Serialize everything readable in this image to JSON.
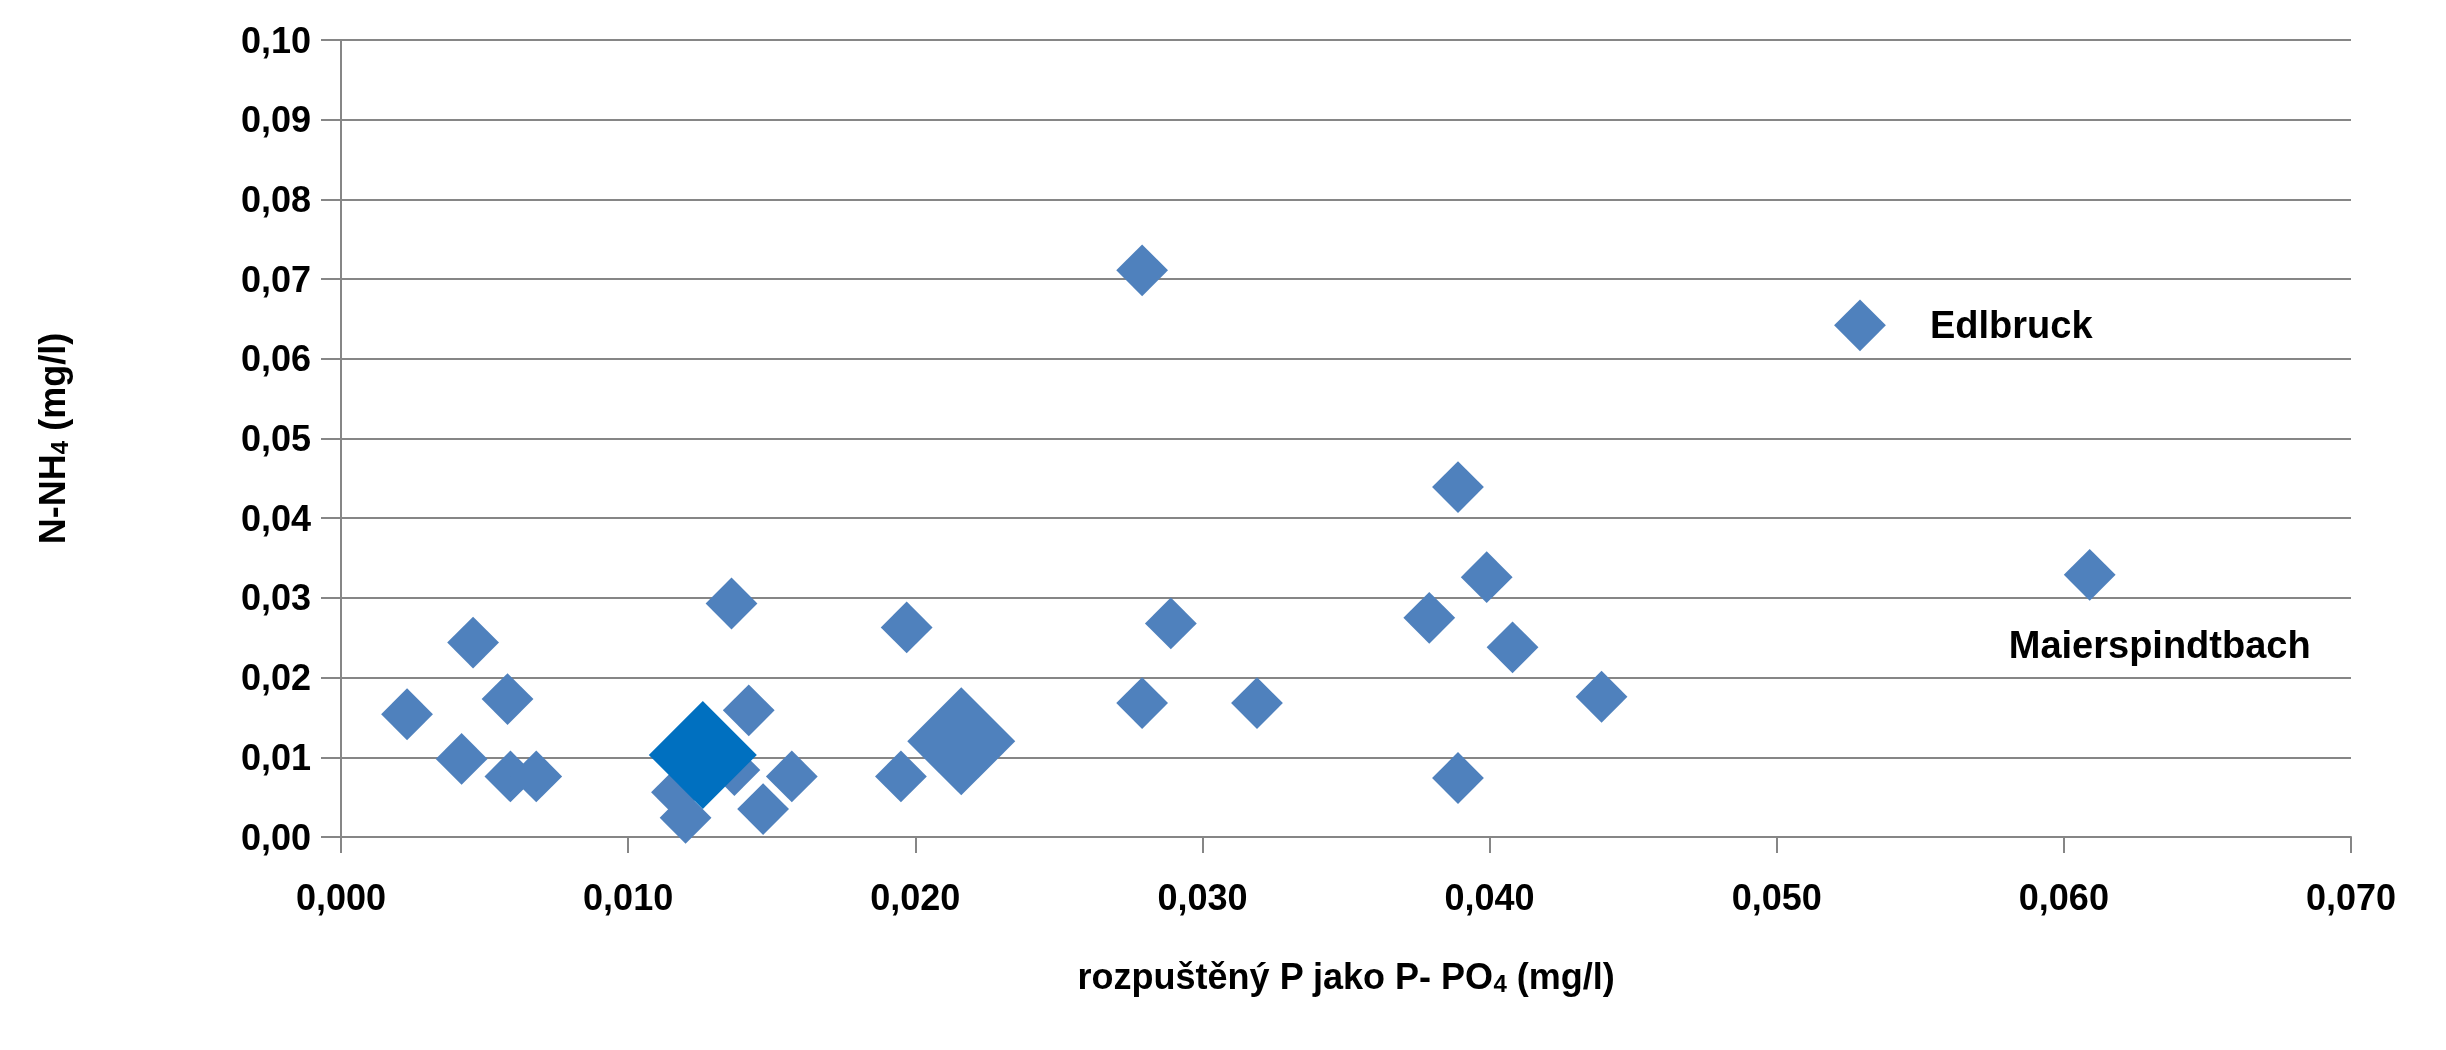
{
  "chart_data": {
    "type": "bubble",
    "xlabel": "rozpuštěný P jako P- PO$_{4}$ (mg/l)",
    "ylabel": "N-NH$_{4}$ (mg/l)",
    "xlim": [
      0,
      0.07
    ],
    "xticks": [
      {
        "value": 0,
        "label": "0,000"
      },
      {
        "value": 0.01,
        "label": "0,010"
      },
      {
        "value": 0.02,
        "label": "0,020"
      },
      {
        "value": 0.03,
        "label": "0,030"
      },
      {
        "value": 0.04,
        "label": "0,040"
      },
      {
        "value": 0.05,
        "label": "0,050"
      },
      {
        "value": 0.06,
        "label": "0,060"
      },
      {
        "value": 0.07,
        "label": "0,070"
      }
    ],
    "ylim": [
      0,
      0.1
    ],
    "yticks": [
      {
        "value": 0,
        "label": "0,00"
      },
      {
        "value": 0.01,
        "label": "0,01"
      },
      {
        "value": 0.02,
        "label": "0,02"
      },
      {
        "value": 0.03,
        "label": "0,03"
      },
      {
        "value": 0.04,
        "label": "0,04"
      },
      {
        "value": 0.05,
        "label": "0,05"
      },
      {
        "value": 0.06,
        "label": "0,06"
      },
      {
        "value": 0.07,
        "label": "0,07"
      },
      {
        "value": 0.08,
        "label": "0,08"
      },
      {
        "value": 0.09,
        "label": "0,09"
      },
      {
        "value": 0.1,
        "label": "0,10"
      }
    ],
    "grid": "y",
    "marker": "diamond",
    "series": [
      {
        "color": "#4f81bd",
        "x": [
          0.0023,
          0.0046,
          0.0058,
          0.0042,
          0.0059,
          0.0068,
          0.0136,
          0.0117,
          0.012,
          0.0137,
          0.0142,
          0.0147,
          0.0157,
          0.0197,
          0.0195,
          0.0279,
          0.0529,
          0.0389,
          0.0399,
          0.0379,
          0.0408,
          0.0289,
          0.0279,
          0.0319,
          0.0439,
          0.0389,
          0.0609
        ],
        "values": [
          0.0154,
          0.0244,
          0.0173,
          0.0098,
          0.0076,
          0.0076,
          0.0293,
          0.0056,
          0.0024,
          0.0084,
          0.0159,
          0.0035,
          0.0076,
          0.0263,
          0.0076,
          0.0711,
          0.0642,
          0.0439,
          0.0326,
          0.0275,
          0.0238,
          0.0268,
          0.0168,
          0.0168,
          0.0176,
          0.0074,
          0.0329
        ],
        "sizes": [
          0.23,
          0.23,
          0.23,
          0.23,
          0.23,
          0.23,
          0.23,
          0.23,
          0.23,
          0.23,
          0.23,
          0.23,
          0.23,
          0.23,
          0.23,
          0.23,
          0.23,
          0.23,
          0.23,
          0.23,
          0.23,
          0.23,
          0.23,
          0.23,
          0.23,
          0.23,
          0.23
        ]
      },
      {
        "color": "#4f81bd",
        "x": [
          0.0216
        ],
        "values": [
          0.012
        ],
        "sizes": [
          1
        ]
      },
      {
        "color": "#0070c0",
        "x": [
          0.0126
        ],
        "values": [
          0.0103
        ],
        "sizes": [
          1
        ]
      }
    ],
    "annotations": [
      {
        "text": "Edlbruck",
        "x": 0.0529,
        "y": 0.0642
      },
      {
        "text": "Maierspindtbach",
        "x": 0.0609,
        "y": 0.0329
      }
    ]
  }
}
